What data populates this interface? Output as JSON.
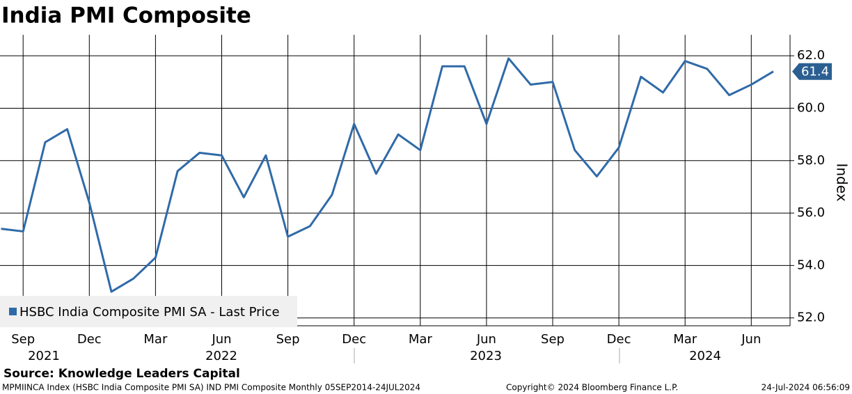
{
  "chart_data": {
    "type": "line",
    "title": "India PMI Composite",
    "y_label": "Index",
    "source": "Source: Knowledge Leaders Capital",
    "footer_left": "MPMIINCA Index (HSBC India Composite PMI SA) IND PMI Composite  Monthly 05SEP2014-24JUL2024",
    "footer_center": "Copyright© 2024 Bloomberg Finance L.P.",
    "footer_right": "24-Jul-2024 06:56:09",
    "categories": [
      null,
      "Sep",
      null,
      null,
      "Dec",
      null,
      null,
      "Mar",
      null,
      null,
      "Jun",
      null,
      null,
      "Sep",
      null,
      null,
      "Dec",
      null,
      null,
      "Mar",
      null,
      null,
      "Jun",
      null,
      null,
      "Sep",
      null,
      null,
      "Dec",
      null,
      null,
      "Mar",
      null,
      null,
      "Jun",
      null
    ],
    "years": [
      "2021",
      "2022",
      "2023",
      "2024"
    ],
    "series": [
      {
        "name": "HSBC India Composite PMI SA - Last Price",
        "color": "#2f6aa8",
        "values": [
          55.4,
          55.3,
          58.7,
          59.2,
          56.4,
          53.0,
          53.5,
          54.3,
          57.6,
          58.3,
          58.2,
          56.6,
          58.2,
          55.1,
          55.5,
          56.7,
          59.4,
          57.5,
          59.0,
          58.4,
          61.6,
          61.6,
          59.4,
          61.9,
          60.9,
          61.0,
          58.4,
          57.4,
          58.5,
          61.2,
          60.6,
          61.8,
          61.5,
          60.5,
          60.9,
          61.4
        ]
      }
    ],
    "ylim": [
      51.7,
      62.8
    ],
    "yticks": [
      {
        "value": 52,
        "label": "52.0"
      },
      {
        "value": 54,
        "label": "54.0"
      },
      {
        "value": 56,
        "label": "56.0"
      },
      {
        "value": 58,
        "label": "58.0"
      },
      {
        "value": 60,
        "label": "60.0"
      },
      {
        "value": 62,
        "label": "62.0"
      }
    ],
    "grid": true,
    "legend": "lower left"
  }
}
